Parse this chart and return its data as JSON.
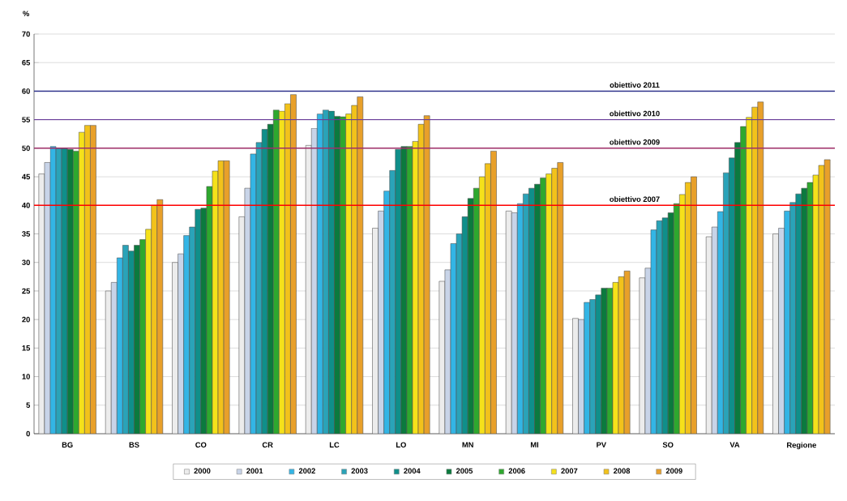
{
  "chart_data": {
    "type": "bar",
    "ylabel": "%",
    "categories": [
      "BG",
      "BS",
      "CO",
      "CR",
      "LC",
      "LO",
      "MN",
      "MI",
      "PV",
      "SO",
      "VA",
      "Regione"
    ],
    "ylim": [
      0,
      70
    ],
    "yticks": [
      0,
      5,
      10,
      15,
      20,
      25,
      30,
      35,
      40,
      45,
      50,
      55,
      60,
      65,
      70
    ],
    "grid": "y",
    "legend": "bottom",
    "series": [
      {
        "name": "2000",
        "color": "#ececec",
        "values": [
          45.5,
          25,
          30,
          38,
          50.5,
          36,
          26.7,
          39,
          20.2,
          27.3,
          34.5,
          35
        ]
      },
      {
        "name": "2001",
        "color": "#c8d4e8",
        "values": [
          47.5,
          26.5,
          31.5,
          43,
          53.5,
          39,
          28.7,
          38.7,
          20,
          29,
          36.2,
          36
        ]
      },
      {
        "name": "2002",
        "color": "#33b5e5",
        "values": [
          50.3,
          30.8,
          34.7,
          49,
          56,
          42.5,
          33.3,
          40.3,
          23,
          35.7,
          38.9,
          39
        ]
      },
      {
        "name": "2003",
        "color": "#2aa3b8",
        "values": [
          50,
          33,
          36.2,
          51,
          56.7,
          46.1,
          35,
          42,
          23.5,
          37.3,
          45.7,
          40.5
        ]
      },
      {
        "name": "2004",
        "color": "#0f8f8a",
        "values": [
          50,
          32,
          39.3,
          53.3,
          56.5,
          49.8,
          38,
          43,
          24.3,
          37.8,
          48.3,
          42
        ]
      },
      {
        "name": "2005",
        "color": "#0b7a3e",
        "values": [
          49.8,
          33,
          39.5,
          54.2,
          55.6,
          50.3,
          41.2,
          43.7,
          25.5,
          38.7,
          51,
          43
        ]
      },
      {
        "name": "2006",
        "color": "#2ea82e",
        "values": [
          49.5,
          34,
          43.3,
          56.7,
          55.5,
          50.3,
          43,
          44.8,
          25.5,
          40.3,
          53.8,
          44
        ]
      },
      {
        "name": "2007",
        "color": "#f5e11a",
        "values": [
          52.8,
          35.8,
          46,
          56.5,
          56,
          51.2,
          45,
          45.5,
          26.5,
          41.9,
          55.4,
          45.3
        ]
      },
      {
        "name": "2008",
        "color": "#f2c21b",
        "values": [
          54,
          40,
          47.8,
          57.8,
          57.5,
          54.2,
          47.3,
          46.5,
          27.5,
          44,
          57.2,
          47
        ]
      },
      {
        "name": "2009",
        "color": "#e8a02a",
        "values": [
          54,
          41,
          47.8,
          59.4,
          59,
          55.7,
          49.5,
          47.5,
          28.5,
          45,
          58.1,
          48
        ]
      }
    ],
    "ref_lines": [
      {
        "axis": "y",
        "value": 60,
        "label": "obiettivo 2011",
        "color": "#2b2f8a"
      },
      {
        "axis": "y",
        "value": 55,
        "label": "obiettivo 2010",
        "color": "#6a3d9a"
      },
      {
        "axis": "y",
        "value": 50,
        "label": "obiettivo 2009",
        "color": "#a0306a"
      },
      {
        "axis": "y",
        "value": 40,
        "label": "obiettivo 2007",
        "color": "#ff0000"
      }
    ]
  }
}
